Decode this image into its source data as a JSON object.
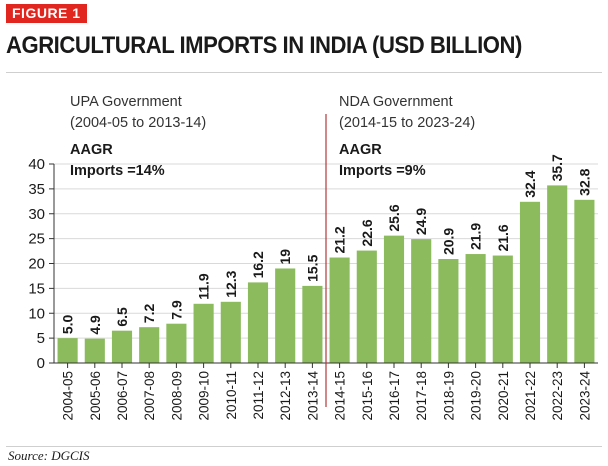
{
  "figure_label": "FIGURE 1",
  "figure_title": "AGRICULTURAL IMPORTS IN INDIA (USD BILLION)",
  "source": "Source: DGCIS",
  "annotations": {
    "upa": {
      "title": "UPA Government",
      "period": "(2004-05 to 2013-14)",
      "aagr_label": "AAGR",
      "aagr_value": "Imports =14%"
    },
    "nda": {
      "title": "NDA Government",
      "period": "(2014-15 to 2023-24)",
      "aagr_label": "AAGR",
      "aagr_value": "Imports =9%"
    }
  },
  "colors": {
    "bar": "#8cbb5e",
    "accent": "#e0261e",
    "divider": "#b5373a",
    "axis": "#333333",
    "grid": "#d9d9d9"
  },
  "chart_data": {
    "type": "bar",
    "title": "AGRICULTURAL IMPORTS IN INDIA (USD BILLION)",
    "xlabel": "",
    "ylabel": "",
    "ylim": [
      0,
      40
    ],
    "yticks": [
      0,
      5,
      10,
      15,
      20,
      25,
      30,
      35,
      40
    ],
    "grid": true,
    "legend": "none",
    "categories": [
      "2004-05",
      "2005-06",
      "2006-07",
      "2007-08",
      "2008-09",
      "2009-10",
      "2010-11",
      "2011-12",
      "2012-13",
      "2013-14",
      "2014-15",
      "2015-16",
      "2016-17",
      "2017-18",
      "2018-19",
      "2019-20",
      "2020-21",
      "2021-22",
      "2022-23",
      "2023-24"
    ],
    "values": [
      5.0,
      4.9,
      6.5,
      7.2,
      7.9,
      11.9,
      12.3,
      16.2,
      19,
      15.5,
      21.2,
      22.6,
      25.6,
      24.9,
      20.9,
      21.9,
      21.6,
      32.4,
      35.7,
      32.8
    ],
    "value_labels": [
      "5.0",
      "4.9",
      "6.5",
      "7.2",
      "7.9",
      "11.9",
      "12.3",
      "16.2",
      "19",
      "15.5",
      "21.2",
      "22.6",
      "25.6",
      "24.9",
      "20.9",
      "21.9",
      "21.6",
      "32.4",
      "35.7",
      "32.8"
    ],
    "divider_after_index": 9
  }
}
